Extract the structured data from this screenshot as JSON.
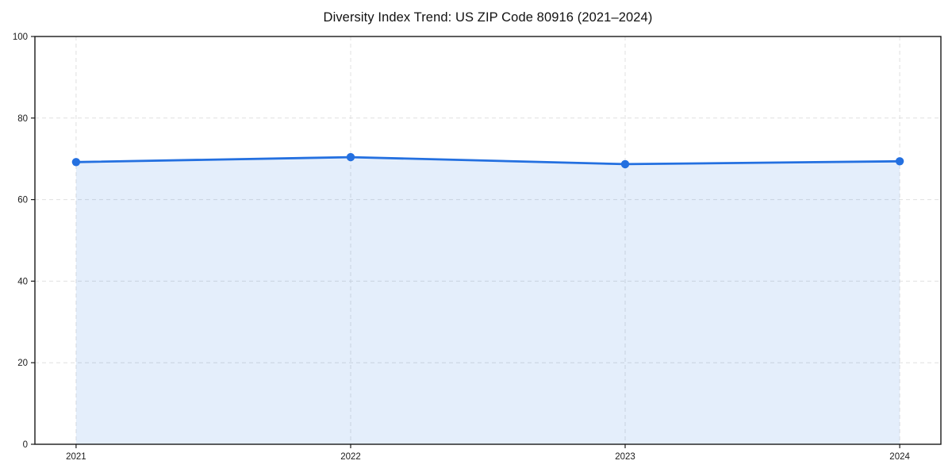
{
  "chart_data": {
    "type": "area",
    "title": "Diversity Index Trend: US ZIP Code 80916 (2021–2024)",
    "series_name": "Diversity Index",
    "x": [
      2021,
      2022,
      2023,
      2024
    ],
    "values": [
      69.2,
      70.4,
      68.7,
      69.4
    ],
    "xlabel": "",
    "ylabel": "",
    "xlim_margin_fraction": 0.05,
    "ylim": [
      0,
      100
    ],
    "yticks": [
      0,
      20,
      40,
      60,
      80,
      100
    ],
    "xticks": [
      2021,
      2022,
      2023,
      2024
    ],
    "grid": "on",
    "grid_style": "dashed",
    "legend_position": "none",
    "colors": {
      "line": "#2470e0",
      "marker": "#2470e0",
      "area_fill": "rgba(36, 112, 224, 0.12)",
      "grid": "#e0e0e0",
      "spine": "#1a1a1a",
      "tick_label": "#1a1a1a",
      "title": "#111111",
      "background": "#ffffff"
    }
  }
}
